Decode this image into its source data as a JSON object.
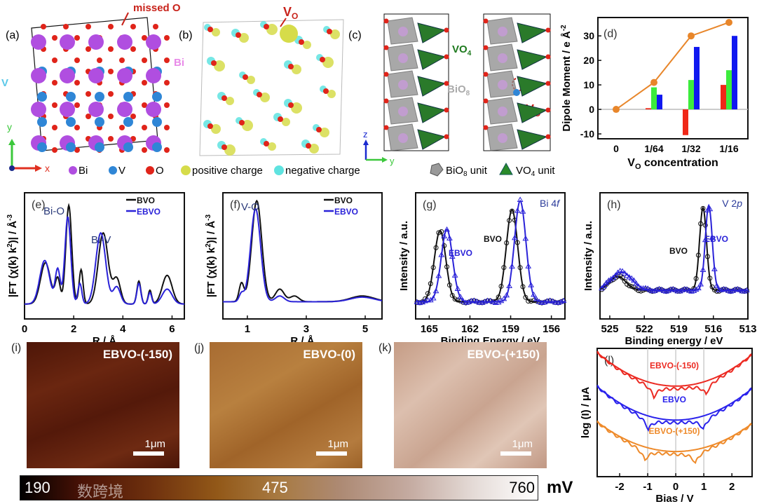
{
  "panel_a": {
    "label": "(a)",
    "missed_o": "missed O",
    "bi": "Bi",
    "v": "V",
    "axis_x": "x",
    "axis_y": "y"
  },
  "panel_b": {
    "label": "(b)",
    "vo_main": "V",
    "vo_sub": "O"
  },
  "panel_c": {
    "label": "(c)",
    "vo4_main": "VO",
    "vo4_sub": "4",
    "bio8_main": "BiO",
    "bio8_sub": "8",
    "vo_main": "V",
    "vo_sub": "O",
    "axis_z": "z",
    "axis_y": "y"
  },
  "legend": {
    "bi": "Bi",
    "v": "V",
    "o": "O",
    "positive": "positive charge",
    "negative": "negative charge",
    "bio8_main": "BiO",
    "bio8_sub": "8",
    "bio8_rest": " unit",
    "vo4_main": "VO",
    "vo4_sub": "4",
    "vo4_rest": " unit",
    "colors": {
      "bi": "#b04ee0",
      "v": "#2f86d6",
      "o": "#e0241a",
      "positive": "#d6dc4a",
      "negative": "#5fe3e0"
    }
  },
  "chart_data": [
    {
      "id": "d",
      "type": "bar+line",
      "label": "(d)",
      "categories": [
        "0",
        "1/64",
        "1/32",
        "1/16"
      ],
      "xlabel_main": "V",
      "xlabel_sub": "O",
      "xlabel_rest": " concentration",
      "ylabel": "Dipole Moment / e Å",
      "ylabel_sup": "-2",
      "ylim": [
        -12,
        37.5
      ],
      "yticks": [
        -10,
        0,
        10,
        20,
        30
      ],
      "line": {
        "color": "#e8862a",
        "values": [
          0,
          11,
          30,
          35.5
        ]
      },
      "series": [
        {
          "name": "red",
          "color": "#f02818",
          "values": [
            null,
            0.5,
            -10.5,
            10
          ]
        },
        {
          "name": "green",
          "color": "#3cec3c",
          "values": [
            null,
            9,
            12,
            16
          ]
        },
        {
          "name": "blue",
          "color": "#1018f0",
          "values": [
            null,
            6,
            25.5,
            30
          ]
        }
      ]
    },
    {
      "id": "e",
      "type": "line",
      "label": "(e)",
      "xlabel": "R / Å",
      "ylabel": "|FT (χ(k) k",
      "ylabel_sup1": "2",
      "ylabel_mid": ")| / Å",
      "ylabel_sup2": "-3",
      "xlim": [
        0,
        6.5
      ],
      "xticks": [
        0,
        2,
        4,
        6
      ],
      "annotations": [
        "Bi-O",
        "Bi-V"
      ],
      "series": [
        {
          "name": "BVO",
          "color": "#111111",
          "base": 0.08,
          "peaks": [
            [
              0.85,
              0.36,
              0.2
            ],
            [
              1.35,
              0.22,
              0.1
            ],
            [
              1.8,
              0.86,
              0.12
            ],
            [
              2.3,
              0.3,
              0.08
            ],
            [
              3.2,
              0.62,
              0.2
            ],
            [
              3.75,
              0.22,
              0.15
            ],
            [
              4.65,
              0.2,
              0.08
            ],
            [
              5.1,
              0.12,
              0.07
            ],
            [
              5.8,
              0.25,
              0.2
            ]
          ]
        },
        {
          "name": "EBVO",
          "color": "#2a22d8",
          "base": 0.08,
          "peaks": [
            [
              0.82,
              0.38,
              0.2
            ],
            [
              1.35,
              0.3,
              0.1
            ],
            [
              1.76,
              0.76,
              0.12
            ],
            [
              2.25,
              0.18,
              0.08
            ],
            [
              3.1,
              0.62,
              0.2
            ],
            [
              3.75,
              0.15,
              0.15
            ],
            [
              4.65,
              0.18,
              0.08
            ],
            [
              5.1,
              0.1,
              0.07
            ],
            [
              5.8,
              0.13,
              0.2
            ]
          ]
        }
      ]
    },
    {
      "id": "f",
      "type": "line",
      "label": "(f)",
      "xlabel": "R / Å",
      "ylabel": "|FT (χ(k) k",
      "ylabel_sup1": "2",
      "ylabel_mid": ")| / Å",
      "ylabel_sup2": "-3",
      "xlim": [
        0.17,
        5.57
      ],
      "xticks": [
        1,
        3,
        5
      ],
      "annotations": [
        "V-O"
      ],
      "series": [
        {
          "name": "BVO",
          "color": "#111111",
          "base": 0.1,
          "peaks": [
            [
              0.8,
              0.16,
              0.08
            ],
            [
              1.32,
              0.88,
              0.17
            ],
            [
              2.1,
              0.11,
              0.15
            ],
            [
              2.6,
              0.05,
              0.15
            ],
            [
              4.9,
              0.05,
              0.4
            ]
          ]
        },
        {
          "name": "EBVO",
          "color": "#2a22d8",
          "base": 0.1,
          "peaks": [
            [
              0.8,
              0.07,
              0.08
            ],
            [
              1.28,
              0.81,
              0.17
            ],
            [
              2.1,
              0.05,
              0.15
            ],
            [
              4.9,
              0.04,
              0.4
            ]
          ]
        }
      ]
    },
    {
      "id": "g",
      "type": "scatter+line",
      "label": "(g)",
      "title": "Bi 4",
      "title_italic": "f",
      "xlabel": "Binding Energy / eV",
      "ylabel": "Intensity / a.u.",
      "xlim": [
        166,
        155
      ],
      "xticks": [
        165,
        162,
        159,
        156
      ],
      "annotations": [
        "BVO",
        "EBVO"
      ],
      "series": [
        {
          "name": "BVO",
          "color": "#111111",
          "marker": "circle",
          "base": 0.1,
          "peaks": [
            [
              164.2,
              0.62,
              0.42
            ],
            [
              158.9,
              0.8,
              0.42
            ]
          ]
        },
        {
          "name": "EBVO",
          "color": "#2a22d8",
          "marker": "triangle",
          "base": 0.1,
          "peaks": [
            [
              163.7,
              0.63,
              0.42
            ],
            [
              158.3,
              0.88,
              0.42
            ]
          ]
        }
      ]
    },
    {
      "id": "h",
      "type": "scatter+line",
      "label": "(h)",
      "title": "V 2",
      "title_italic": "p",
      "xlabel": "Binding energy / eV",
      "ylabel": "Intensity / a.u.",
      "xlim": [
        525.85,
        513
      ],
      "xticks": [
        525,
        522,
        519,
        516,
        513
      ],
      "annotations": [
        "BVO",
        "EBVO"
      ],
      "series": [
        {
          "name": "BVO",
          "color": "#111111",
          "marker": "circle",
          "base": 0.2,
          "peaks": [
            [
              516.9,
              0.72,
              0.3
            ],
            [
              524.3,
              0.12,
              0.7
            ]
          ]
        },
        {
          "name": "EBVO",
          "color": "#2a22d8",
          "marker": "triangle",
          "base": 0.2,
          "peaks": [
            [
              516.4,
              0.74,
              0.3
            ],
            [
              524.0,
              0.16,
              0.9
            ]
          ]
        }
      ]
    },
    {
      "id": "l",
      "type": "line",
      "label": "(l)",
      "xlabel": "Bias / V",
      "ylabel": "log (I) / μA",
      "xlim": [
        -2.8,
        2.72
      ],
      "xticks": [
        -2,
        -1,
        0,
        1,
        2
      ],
      "vlines": [
        -1,
        0,
        1
      ],
      "series": [
        {
          "name": "EBVO-(-150)",
          "color": "#ec2a22",
          "offset": 0.72,
          "curv": 0.034,
          "dips": [
            -0.78,
            1.08
          ]
        },
        {
          "name": "EBVO",
          "color": "#2a22ec",
          "offset": 0.45,
          "curv": 0.034,
          "dips": [
            -0.98,
            0.98
          ]
        },
        {
          "name": "EBVO-(+150)",
          "color": "#ee8a2a",
          "offset": 0.2,
          "curv": 0.03,
          "dips": [
            -1.1,
            0.7
          ]
        }
      ]
    }
  ],
  "afm": [
    {
      "label": "(i)",
      "title": "EBVO-(-150)",
      "scale": "1μm"
    },
    {
      "label": "(j)",
      "title": "EBVO-(0)",
      "scale": "1μm"
    },
    {
      "label": "(k)",
      "title": "EBVO-(+150)",
      "scale": "1μm"
    }
  ],
  "colorbar": {
    "min": "190",
    "mid": "475",
    "max": "760",
    "unit": "mV"
  },
  "watermark": "数跨境"
}
